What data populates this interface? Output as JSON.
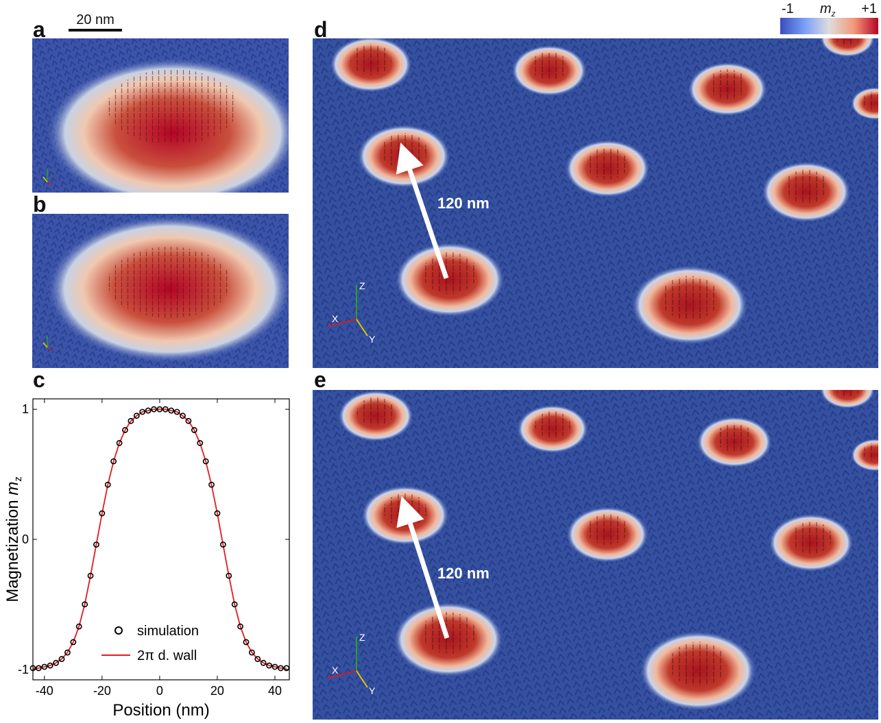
{
  "panels": {
    "a": "a",
    "b": "b",
    "c": "c",
    "d": "d",
    "e": "e"
  },
  "scalebar": {
    "label": "20 nm"
  },
  "colorbar": {
    "min_label": "-1",
    "max_label": "+1",
    "quantity": "m",
    "quantity_sub": "z",
    "colors": [
      "#3b4cc0",
      "#7b9ff9",
      "#dddddd",
      "#f49a7b",
      "#b40426"
    ]
  },
  "annotations": {
    "d_distance": "120 nm",
    "e_distance": "120 nm"
  },
  "axes_triad": {
    "x": "X",
    "y": "Y",
    "z": "Z"
  },
  "chart_data": {
    "type": "line",
    "xlabel": "Position (nm)",
    "ylabel": "Magnetization m_z",
    "ylabel_main": "Magnetization ",
    "ylabel_var": "m",
    "ylabel_sub": "z",
    "xlim": [
      -44,
      45
    ],
    "ylim": [
      -1.08,
      1.08
    ],
    "xticks": [
      -40,
      -20,
      0,
      20,
      40
    ],
    "yticks": [
      -1,
      0,
      1
    ],
    "xtick_labels": [
      "-40",
      "-20",
      "0",
      "20",
      "40"
    ],
    "ytick_labels": [
      "-1",
      "0",
      "1"
    ],
    "legend": {
      "position": "bottom-center",
      "entries": [
        "simulation",
        "2π d. wall"
      ]
    },
    "series": [
      {
        "name": "simulation",
        "marker": "circle",
        "color": "#000000",
        "x": [
          -44,
          -42,
          -40,
          -38,
          -36,
          -34,
          -32,
          -30,
          -28,
          -26,
          -24,
          -22,
          -20,
          -18,
          -16,
          -14,
          -12,
          -10,
          -8,
          -6,
          -4,
          -2,
          0,
          2,
          4,
          6,
          8,
          10,
          12,
          14,
          16,
          18,
          20,
          22,
          24,
          26,
          28,
          30,
          32,
          34,
          36,
          38,
          40,
          42,
          44
        ],
        "y": [
          -0.99,
          -0.99,
          -0.98,
          -0.97,
          -0.95,
          -0.92,
          -0.87,
          -0.79,
          -0.67,
          -0.5,
          -0.28,
          -0.04,
          0.2,
          0.42,
          0.6,
          0.74,
          0.84,
          0.91,
          0.95,
          0.98,
          0.99,
          1.0,
          1.0,
          1.0,
          0.99,
          0.98,
          0.95,
          0.91,
          0.84,
          0.74,
          0.6,
          0.42,
          0.2,
          -0.04,
          -0.28,
          -0.5,
          -0.67,
          -0.79,
          -0.87,
          -0.92,
          -0.95,
          -0.97,
          -0.98,
          -0.99,
          -0.99
        ]
      },
      {
        "name": "2π d. wall",
        "marker": "line",
        "color": "#e41a1c",
        "x": [
          -44,
          -42,
          -40,
          -38,
          -36,
          -34,
          -32,
          -30,
          -28,
          -26,
          -24,
          -22,
          -20,
          -18,
          -16,
          -14,
          -12,
          -10,
          -8,
          -6,
          -4,
          -2,
          0,
          2,
          4,
          6,
          8,
          10,
          12,
          14,
          16,
          18,
          20,
          22,
          24,
          26,
          28,
          30,
          32,
          34,
          36,
          38,
          40,
          42,
          44
        ],
        "y": [
          -0.99,
          -0.99,
          -0.98,
          -0.97,
          -0.95,
          -0.92,
          -0.87,
          -0.79,
          -0.67,
          -0.5,
          -0.28,
          -0.04,
          0.2,
          0.42,
          0.6,
          0.74,
          0.84,
          0.91,
          0.95,
          0.98,
          0.99,
          1.0,
          1.0,
          1.0,
          0.99,
          0.98,
          0.95,
          0.91,
          0.84,
          0.74,
          0.6,
          0.42,
          0.2,
          -0.04,
          -0.28,
          -0.5,
          -0.67,
          -0.79,
          -0.87,
          -0.92,
          -0.95,
          -0.97,
          -0.98,
          -0.99,
          -0.99
        ]
      }
    ]
  }
}
